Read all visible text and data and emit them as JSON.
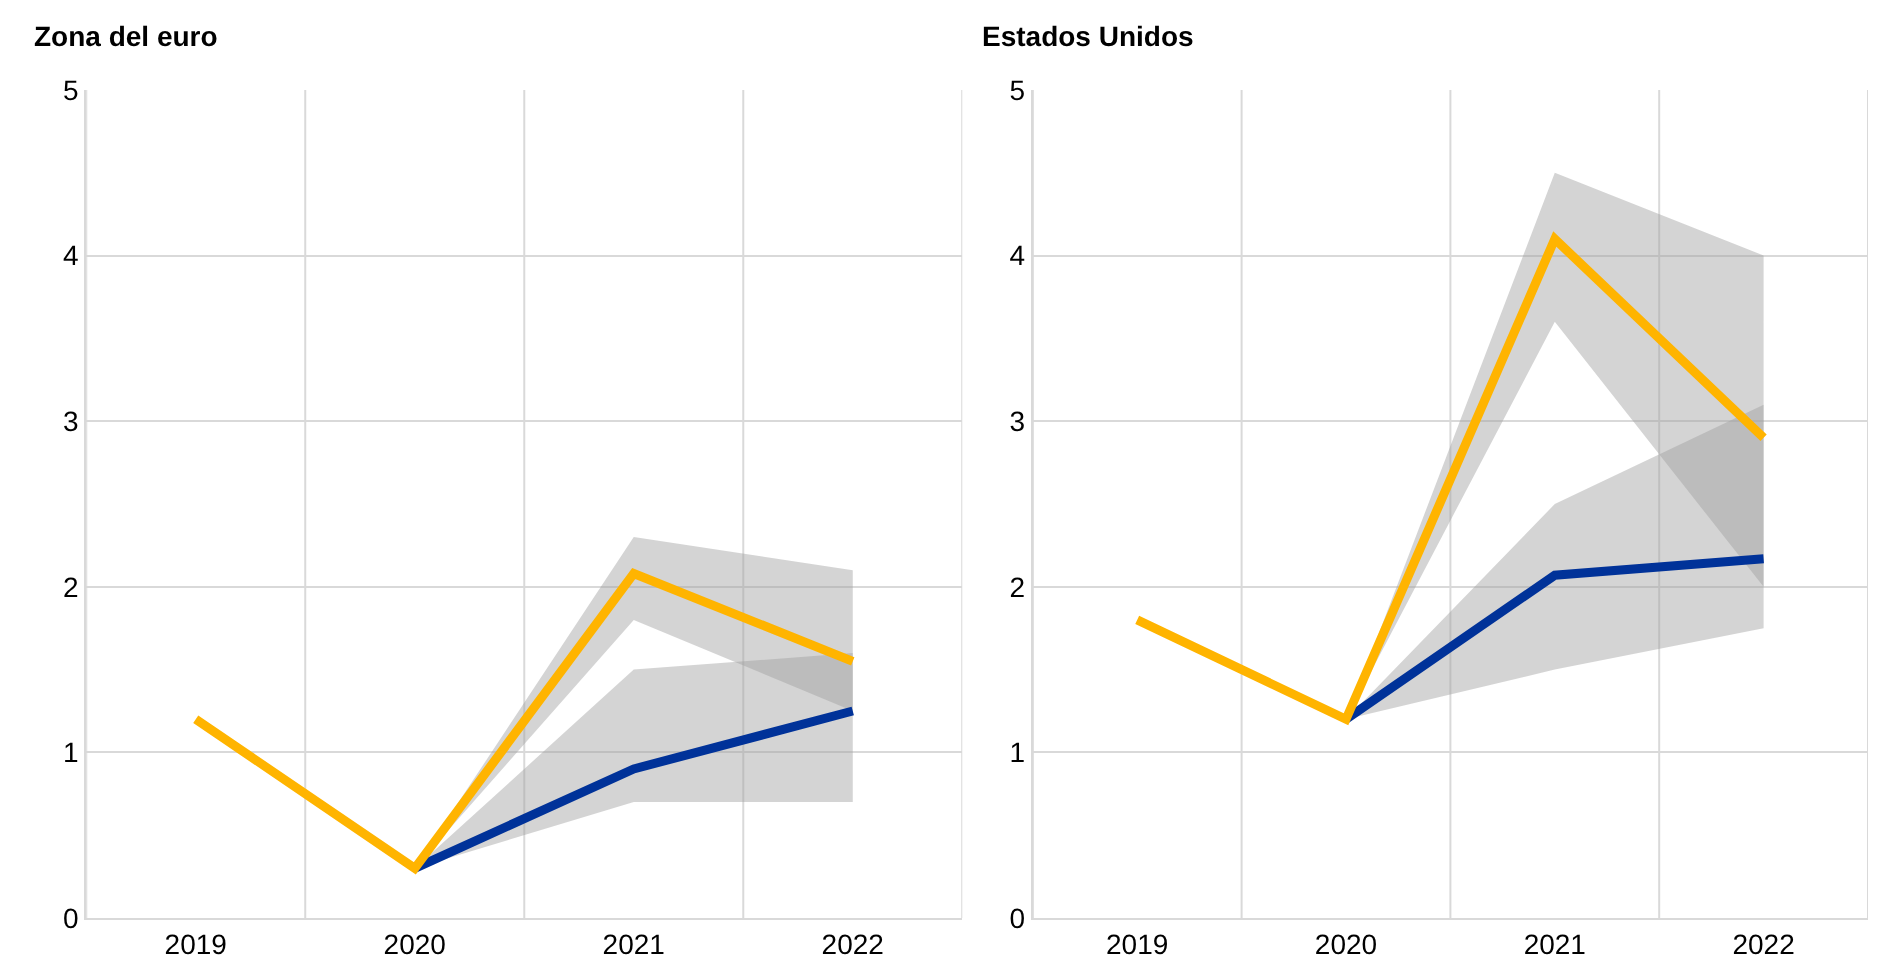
{
  "chart_data": [
    {
      "type": "line",
      "title": "Zona del euro",
      "categories": [
        "2019",
        "2020",
        "2021",
        "2022"
      ],
      "ylim": [
        0,
        5
      ],
      "yticks": [
        0,
        1,
        2,
        3,
        4,
        5
      ],
      "grid": true,
      "series": [
        {
          "color": "#003299",
          "values": [
            null,
            0.3,
            0.9,
            1.25
          ],
          "lower": [
            null,
            0.3,
            0.7,
            0.7
          ],
          "upper": [
            null,
            0.3,
            1.5,
            1.6
          ]
        },
        {
          "color": "#ffb400",
          "values": [
            1.2,
            0.3,
            2.08,
            1.55
          ],
          "lower": [
            null,
            0.3,
            1.8,
            1.25
          ],
          "upper": [
            null,
            0.3,
            2.3,
            2.1
          ]
        }
      ]
    },
    {
      "type": "line",
      "title": "Estados Unidos",
      "categories": [
        "2019",
        "2020",
        "2021",
        "2022"
      ],
      "ylim": [
        0,
        5
      ],
      "yticks": [
        0,
        1,
        2,
        3,
        4,
        5
      ],
      "grid": true,
      "series": [
        {
          "color": "#003299",
          "values": [
            null,
            1.2,
            2.07,
            2.17
          ],
          "lower": [
            null,
            1.2,
            1.5,
            1.75
          ],
          "upper": [
            null,
            1.2,
            2.5,
            3.1
          ]
        },
        {
          "color": "#ffb400",
          "values": [
            1.8,
            1.2,
            4.1,
            2.9
          ],
          "lower": [
            null,
            1.2,
            3.6,
            2.0
          ],
          "upper": [
            null,
            1.2,
            4.5,
            4.0
          ]
        }
      ]
    }
  ]
}
